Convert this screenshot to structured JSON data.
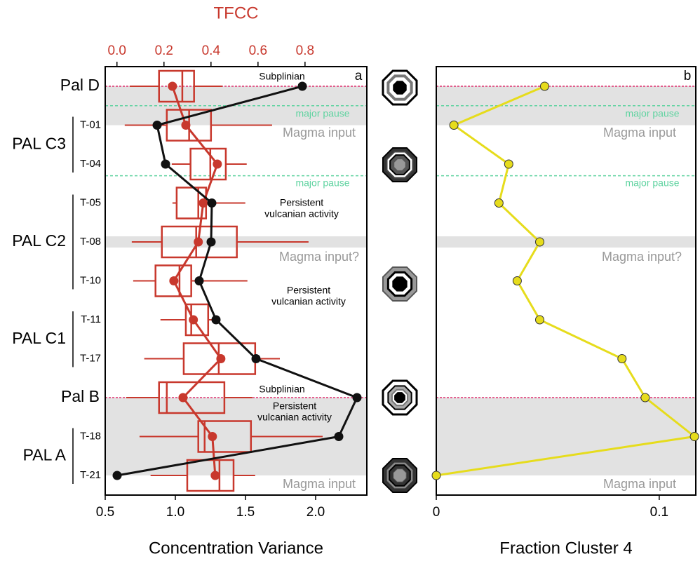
{
  "chart_data": [
    {
      "type": "line",
      "panel_label": "a",
      "xlabel": "Concentration Variance",
      "x2label": "TFCC",
      "categories": [
        "Pal D",
        "T-01",
        "T-04",
        "T-05",
        "T-08",
        "T-10",
        "T-11",
        "T-17",
        "Pal B",
        "T-18",
        "T-21"
      ],
      "groups": [
        {
          "label": "PAL C3",
          "rows": [
            1,
            2
          ]
        },
        {
          "label": "PAL C2",
          "rows": [
            3,
            5
          ]
        },
        {
          "label": "PAL C1",
          "rows": [
            6,
            7
          ]
        },
        {
          "label": "PAL A",
          "rows": [
            9,
            10
          ]
        }
      ],
      "xlim": [
        0.5,
        2.365
      ],
      "xticks": [
        0.5,
        {
          "value": 1,
          "label": "1.0"
        },
        1.5,
        {
          "value": 2,
          "label": "2.0"
        }
      ],
      "x2lim": [
        -0.05,
        1.063
      ],
      "x2ticks": [
        {
          "value": 0,
          "label": "0.0"
        },
        0.2,
        0.4,
        0.6,
        0.8
      ],
      "series": [
        {
          "color": "#111111",
          "values": [
            1.905,
            0.87,
            0.93,
            1.26,
            1.255,
            1.17,
            1.29,
            1.575,
            2.295,
            2.165,
            0.585
          ]
        },
        {
          "color": "#c8382d",
          "axis": "x2",
          "values": [
            0.236,
            0.293,
            0.427,
            0.367,
            0.346,
            0.242,
            0.325,
            0.442,
            0.281,
            0.406,
            0.418
          ],
          "boxes": [
            {
              "whisker_low": 0.054,
              "q1": 0.179,
              "median": 0.278,
              "q3": 0.328,
              "whisker_high": 0.448
            },
            {
              "whisker_low": 0.033,
              "q1": 0.212,
              "median": 0.307,
              "q3": 0.4,
              "whisker_high": 0.66
            },
            {
              "whisker_low": 0.233,
              "q1": 0.313,
              "median": 0.397,
              "q3": 0.463,
              "whisker_high": 0.552
            },
            {
              "whisker_low": 0.236,
              "q1": 0.254,
              "median": 0.346,
              "q3": 0.379,
              "whisker_high": 0.546
            },
            {
              "whisker_low": 0.063,
              "q1": 0.191,
              "median": 0.337,
              "q3": 0.51,
              "whisker_high": 0.815
            },
            {
              "whisker_low": 0.069,
              "q1": 0.164,
              "median": 0.266,
              "q3": 0.316,
              "whisker_high": 0.555
            },
            {
              "whisker_low": 0.185,
              "q1": 0.293,
              "median": 0.316,
              "q3": 0.388,
              "whisker_high": 0.439
            },
            {
              "whisker_low": 0.116,
              "q1": 0.284,
              "median": 0.433,
              "q3": 0.588,
              "whisker_high": 0.693
            },
            {
              "whisker_low": 0.039,
              "q1": 0.179,
              "median": 0.212,
              "q3": 0.457,
              "whisker_high": 0.576
            },
            {
              "whisker_low": 0.096,
              "q1": 0.346,
              "median": 0.373,
              "q3": 0.57,
              "whisker_high": 0.875
            },
            {
              "whisker_low": 0.143,
              "q1": 0.299,
              "median": 0.436,
              "q3": 0.496,
              "whisker_high": 0.588
            }
          ]
        }
      ],
      "bands": [
        [
          0,
          1
        ],
        [
          4,
          4
        ],
        [
          8,
          10
        ]
      ],
      "band_color": "#e2e2e2",
      "event_lines": [
        0,
        8
      ],
      "event_color": "#e0306e",
      "pause_lines": [
        0.5,
        2.3
      ],
      "pause_color": "#5fd3a0",
      "annotations": [
        "Subplinian",
        "major pause",
        "Magma input",
        "major pause",
        "Persistent",
        "vulcanian activity",
        "Magma input?",
        "Persistent",
        "vulcanian activity",
        "Subplinian",
        "Persistent",
        "vulcanian activity",
        "Magma input"
      ]
    },
    {
      "type": "line",
      "panel_label": "b",
      "xlabel": "Fraction Cluster 4",
      "xlim": [
        0,
        0.1164
      ],
      "xticks": [
        0,
        0.1
      ],
      "series": [
        {
          "color": "#e6dc1c",
          "values": [
            0.0486,
            0.0079,
            0.0325,
            0.0281,
            0.0464,
            0.0363,
            0.0464,
            0.0833,
            0.0937,
            0.1158,
            0
          ]
        }
      ],
      "bands": [
        [
          0,
          1
        ],
        [
          4,
          4
        ],
        [
          8,
          10
        ]
      ],
      "band_color": "#e2e2e2",
      "event_lines": [
        0,
        8
      ],
      "event_color": "#e0306e",
      "pause_lines": [
        0.5,
        2.3
      ],
      "pause_color": "#5fd3a0",
      "annotations": [
        "major pause",
        "Magma input",
        "major pause",
        "Magma input?",
        "Magma input"
      ]
    }
  ]
}
